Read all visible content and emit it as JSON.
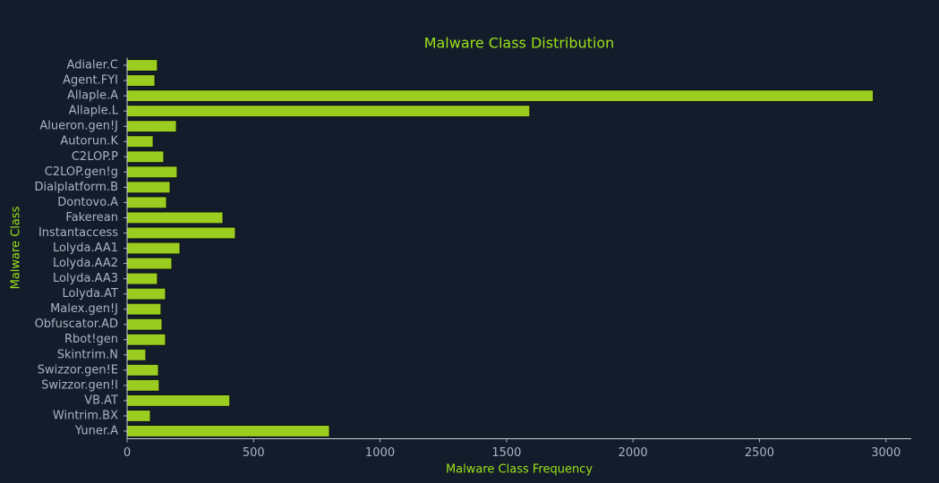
{
  "chart_data": {
    "type": "barh",
    "title": "Malware Class Distribution",
    "x_label": "Malware Class Frequency",
    "y_label": "Malware Class",
    "categories": [
      "Adialer.C",
      "Agent.FYI",
      "Allaple.A",
      "Allaple.L",
      "Alueron.gen!J",
      "Autorun.K",
      "C2LOP.P",
      "C2LOP.gen!g",
      "Dialplatform.B",
      "Dontovo.A",
      "Fakerean",
      "Instantaccess",
      "Lolyda.AA1",
      "Lolyda.AA2",
      "Lolyda.AA3",
      "Lolyda.AT",
      "Malex.gen!J",
      "Obfuscator.AD",
      "Rbot!gen",
      "Skintrim.N",
      "Swizzor.gen!E",
      "Swizzor.gen!I",
      "VB.AT",
      "Wintrim.BX",
      "Yuner.A"
    ],
    "values": [
      120,
      110,
      2950,
      1592,
      195,
      103,
      145,
      198,
      170,
      156,
      379,
      428,
      209,
      177,
      120,
      152,
      134,
      138,
      152,
      74,
      124,
      127,
      406,
      92,
      800
    ],
    "color": "#9acd1f",
    "edge_color": "#0b0f16",
    "xlim": [
      0,
      3100
    ],
    "xticks": [
      0,
      500,
      1000,
      1500,
      2000,
      2500,
      3000
    ],
    "grid": false
  }
}
